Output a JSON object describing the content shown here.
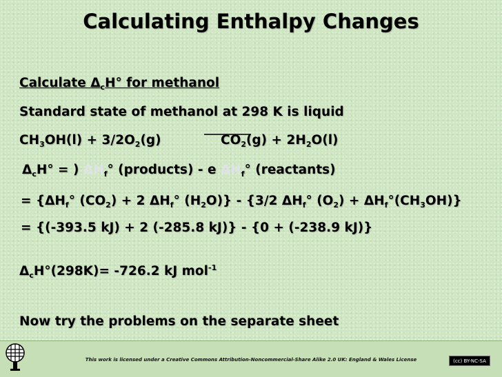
{
  "title": "Calculating Enthalpy Changes",
  "heading": {
    "pre": "Calculate ",
    "delta": "Δ",
    "sub": "c",
    "post": "H° for methanol"
  },
  "standard_state": "Standard state of methanol at 298 K is liquid",
  "equation": {
    "left_a": "CH",
    "left_b": "3",
    "left_c": "OH(l) + 3/2O",
    "left_d": "2",
    "left_e": "(g)",
    "right_a": "CO",
    "right_b": "2",
    "right_c": "(g) + 2H",
    "right_d": "2",
    "right_e": "O(l)"
  },
  "general_formula": {
    "a": "Δ",
    "a_sub": "c",
    "b": "H° = ) ",
    "c": "ΔH",
    "c_sub": "f",
    "d": "°",
    "e": " (products) - e ",
    "f": "ΔH",
    "f_sub": "f",
    "g": "°",
    "h": " (reactants)"
  },
  "substitution": {
    "p1": " =  {ΔH",
    "s1": "f",
    "p2": "° (CO",
    "s2": "2",
    "p3": ") + 2 ΔH",
    "s3": "f",
    "p4": "° (H",
    "s4": "2",
    "p5": "O)} - {3/2 ΔH",
    "s5": "f",
    "p6": "° (O",
    "s6": "2",
    "p7": ") + ΔH",
    "s7": "f",
    "p8": "°(CH",
    "s8": "3",
    "p9": "OH)}"
  },
  "values_line": " = {(-393.5 kJ) + 2 (-285.8 kJ)} - {0 + (-238.9 kJ)}",
  "result": {
    "a": "Δ",
    "a_sub": "c",
    "b": "H°(298K)= -726.2 kJ mol",
    "b_sup": "-1"
  },
  "instruction": "Now try the problems on the separate sheet",
  "footer": {
    "license": "This work is licensed under a Creative Commons Attribution-Noncommercial-Share Alike 2.0 UK: England & Wales License",
    "cc_badge": "(cc) BY-NC-SA"
  }
}
